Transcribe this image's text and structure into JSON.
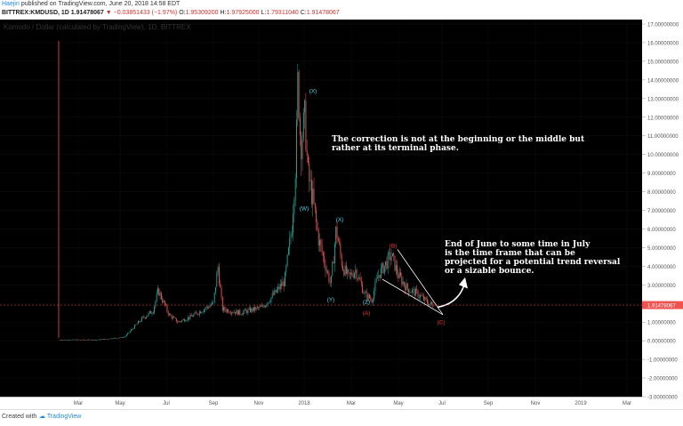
{
  "header": {
    "author": "Haejin",
    "published": "published on TradingView.com, June 20, 2018 14:58 EDT",
    "symbol": "BITTREX:KMDUSD, 1D",
    "price": "1.91478067",
    "change": "▼ −0.03851433 (−1.97%)",
    "o_label": "O:",
    "o_value": "1.95309200",
    "h_label": "H:",
    "h_value": "1.97925000",
    "l_label": "L:",
    "l_value": "1.79311040",
    "c_label": "C:",
    "c_value": "1.91478067"
  },
  "chart_title": "Komodo / Dollar (calculated by TradingView), 1D, BITTREX",
  "annotations": {
    "correction": [
      "The correction is not at the beginning or the middle but",
      "rather at its terminal phase."
    ],
    "time_frame": [
      "End of June to some time in July",
      "is the time frame that can be",
      "projected for a potential trend reversal",
      "or a sizable bounce."
    ]
  },
  "wave_labels": {
    "X1": "(X)",
    "W": "(W)",
    "X2": "(X)",
    "Y": "(Y)",
    "Z": "(Z)",
    "A": "(A)",
    "B": "(B)",
    "C": "(C)"
  },
  "footer": {
    "created_with": "Created with",
    "brand": "TradingView"
  },
  "colors": {
    "up": "#26a69a",
    "down": "#ef5350",
    "background": "#000000",
    "wave_cyan": "#4dd0e1",
    "wave_red": "#e53935",
    "axis_text": "#555555"
  },
  "chart_data": {
    "type": "candlestick",
    "title": "Komodo / Dollar (calculated by TradingView), 1D, BITTREX",
    "ylim": [
      -3,
      17
    ],
    "y_ticks": [
      "17.00000000",
      "16.00000000",
      "15.00000000",
      "14.00000000",
      "13.00000000",
      "12.00000000",
      "11.00000000",
      "10.00000000",
      "9.00000000",
      "8.00000000",
      "7.00000000",
      "6.00000000",
      "5.00000000",
      "4.00000000",
      "3.00000000",
      "2.00000000",
      "1.00000000",
      "0.00000000",
      "-1.00000000",
      "-2.00000000",
      "-3.00000000"
    ],
    "x_ticks": [
      "Mar",
      "May",
      "Jul",
      "Sep",
      "Nov",
      "2018",
      "Mar",
      "May",
      "Jul",
      "Sep",
      "Nov",
      "2019",
      "Mar"
    ],
    "last_price_label": "1.91478067",
    "series_approx": [
      {
        "date": "2017-02",
        "close": 0.05
      },
      {
        "date": "2017-04",
        "close": 0.1
      },
      {
        "date": "2017-05",
        "close": 0.5
      },
      {
        "date": "2017-06",
        "close": 2.6
      },
      {
        "date": "2017-07",
        "close": 1.5
      },
      {
        "date": "2017-08",
        "close": 1.2
      },
      {
        "date": "2017-09",
        "close": 1.8
      },
      {
        "date": "2017-10",
        "close": 1.7
      },
      {
        "date": "2017-11",
        "close": 2.5
      },
      {
        "date": "2017-12",
        "close": 9.0
      },
      {
        "date": "2017-12-20",
        "close": 14.2
      },
      {
        "date": "2018-01",
        "close": 10.0
      },
      {
        "date": "2018-02",
        "close": 6.0
      },
      {
        "date": "2018-03",
        "close": 3.5
      },
      {
        "date": "2018-04",
        "close": 2.2
      },
      {
        "date": "2018-05",
        "close": 4.3
      },
      {
        "date": "2018-06",
        "close": 1.9
      }
    ]
  }
}
